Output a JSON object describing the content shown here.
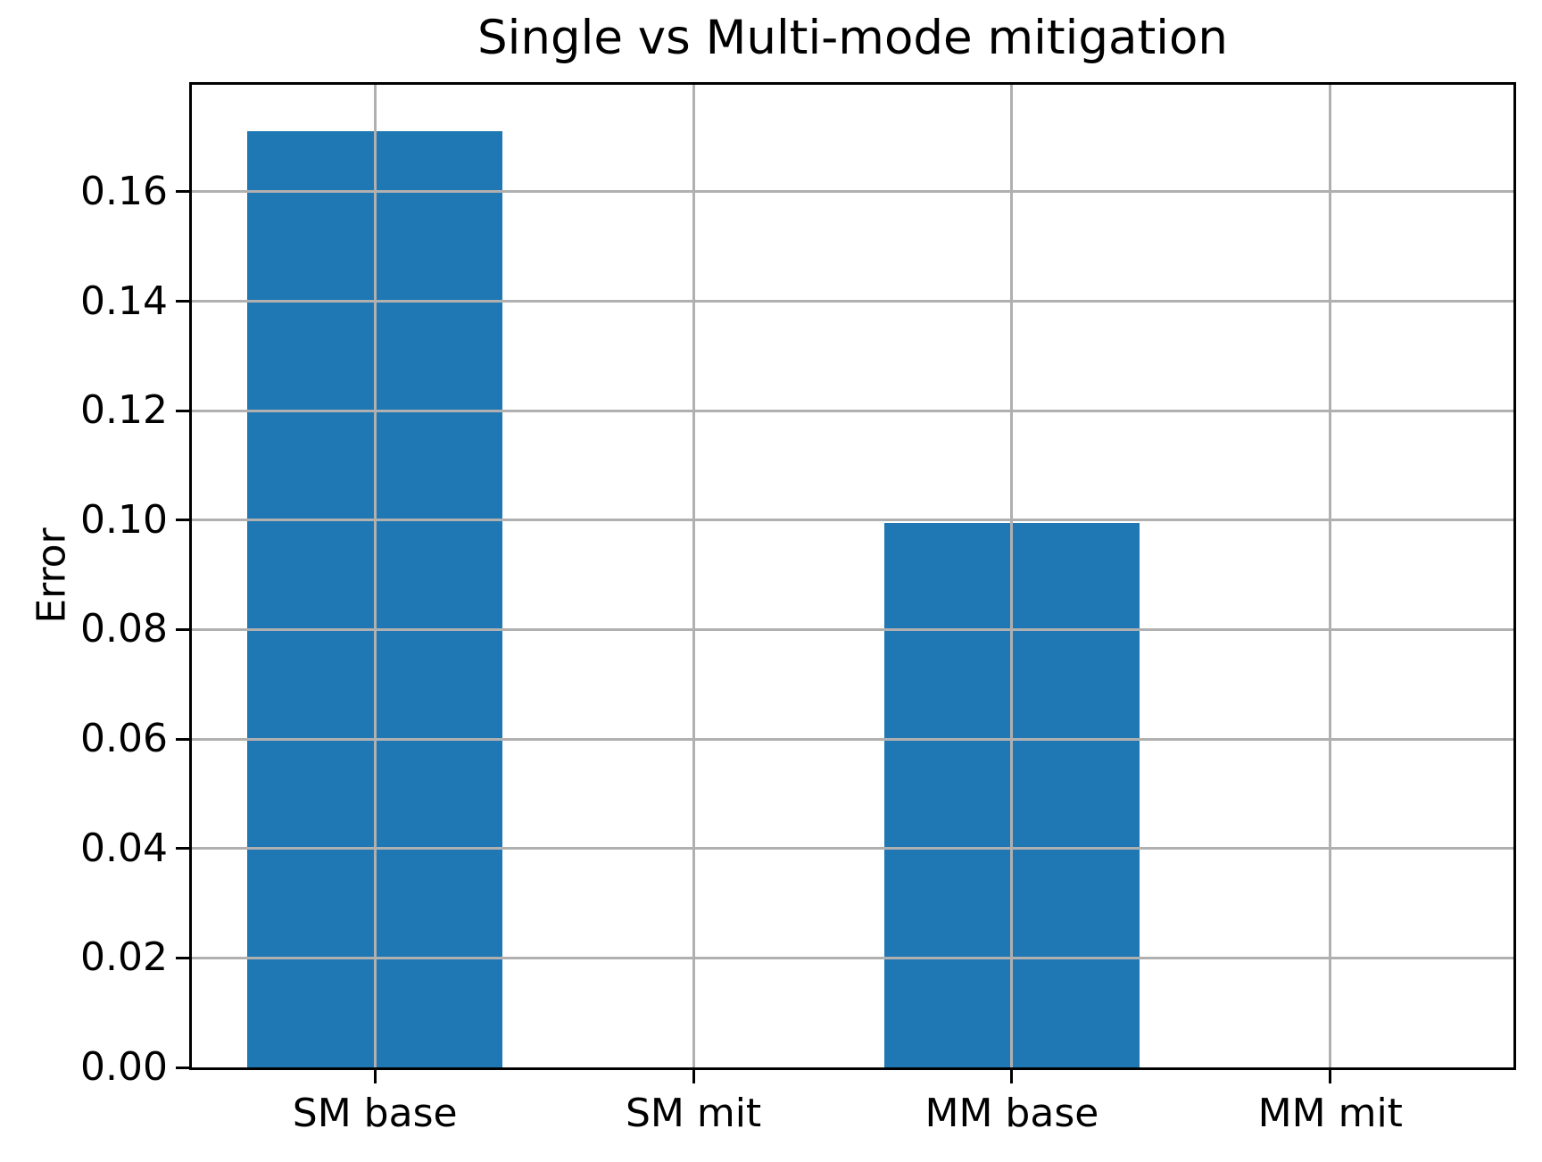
{
  "chart_data": {
    "type": "bar",
    "title": "Single vs Multi-mode mitigation",
    "xlabel": "",
    "ylabel": "Error",
    "categories": [
      "SM base",
      "SM mit",
      "MM base",
      "MM mit"
    ],
    "values": [
      0.171,
      0.0,
      0.0995,
      0.0
    ],
    "yticks": [
      0.0,
      0.02,
      0.04,
      0.06,
      0.08,
      0.1,
      0.12,
      0.14,
      0.16
    ],
    "ytick_labels": [
      "0.00",
      "0.02",
      "0.04",
      "0.06",
      "0.08",
      "0.10",
      "0.12",
      "0.14",
      "0.16"
    ],
    "ylim": [
      0,
      0.17955
    ],
    "xlim": [
      -0.575,
      3.575
    ],
    "grid": true,
    "grid_over_bars": true,
    "legend": false,
    "bar_width_units": 0.8,
    "bar_color": "#1f77b4",
    "grid_color": "#b0b0b0",
    "axis_color": "#000000",
    "background_color": "#ffffff"
  }
}
